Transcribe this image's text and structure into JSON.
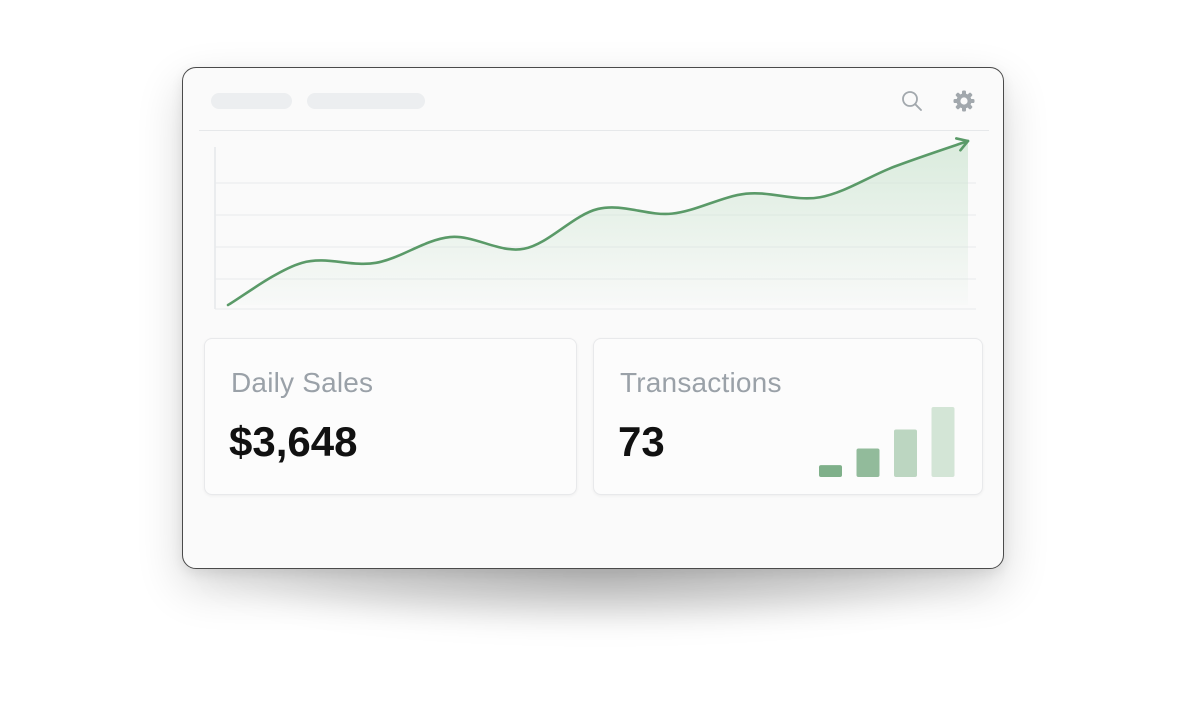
{
  "toolbar": {
    "left_icons": [
      "search-icon",
      "gear-icon"
    ]
  },
  "chart_data": {
    "type": "line",
    "title": "",
    "xlabel": "",
    "ylabel": "",
    "x": [
      0,
      1,
      2,
      3,
      4,
      5,
      6,
      7,
      8,
      9,
      10
    ],
    "series": [
      {
        "values": [
          0,
          36,
          36,
          58,
          48,
          82,
          78,
          95,
          92,
          118,
          140
        ]
      }
    ],
    "grid": true,
    "legend": "none",
    "line_color": "#5a9a68",
    "area_color": "#cfe6d3"
  },
  "cards": {
    "sales": {
      "label": "Daily Sales",
      "value": "$3,648"
    },
    "transactions": {
      "label": "Transactions",
      "value": "73",
      "mini_chart": {
        "type": "bar",
        "values": [
          1,
          2.4,
          4,
          5.9
        ]
      }
    }
  }
}
